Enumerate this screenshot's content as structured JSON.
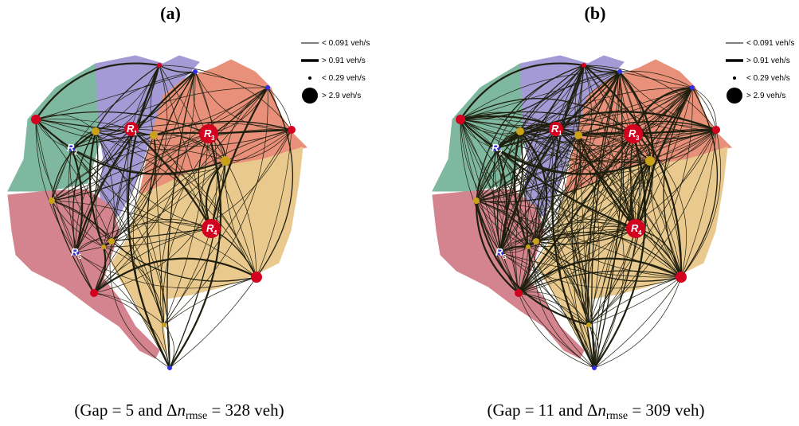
{
  "panels": [
    {
      "id": "a",
      "label": "(a)",
      "caption": {
        "prefix": "(Gap = 5 and Δ",
        "var": "n",
        "sub": "rmse",
        "suffix": " = 328 veh)"
      },
      "legend": [
        {
          "kind": "line-thin",
          "text": "< 0.091 veh/s"
        },
        {
          "kind": "line-thick",
          "text": "> 0.91 veh/s"
        },
        {
          "kind": "dot-small",
          "text": "< 0.29 veh/s"
        },
        {
          "kind": "dot-large",
          "text": "> 2.9 veh/s"
        }
      ],
      "regions": [
        {
          "tag": "R",
          "sub": "1"
        },
        {
          "tag": "R",
          "sub": "2"
        },
        {
          "tag": "R",
          "sub": "3"
        },
        {
          "tag": "R",
          "sub": "4"
        },
        {
          "tag": "R",
          "sub": "5"
        }
      ]
    },
    {
      "id": "b",
      "label": "(b)",
      "caption": {
        "prefix": "(Gap = 11 and Δ",
        "var": "n",
        "sub": "rmse",
        "suffix": " = 309 veh)"
      },
      "legend": [
        {
          "kind": "line-thin",
          "text": "< 0.091 veh/s"
        },
        {
          "kind": "line-thick",
          "text": "> 0.91 veh/s"
        },
        {
          "kind": "dot-small",
          "text": "< 0.29 veh/s"
        },
        {
          "kind": "dot-large",
          "text": "> 2.9 veh/s"
        }
      ],
      "regions": [
        {
          "tag": "R",
          "sub": "1"
        },
        {
          "tag": "R",
          "sub": "2"
        },
        {
          "tag": "R",
          "sub": "3"
        },
        {
          "tag": "R",
          "sub": "4"
        },
        {
          "tag": "R",
          "sub": "5"
        }
      ]
    }
  ],
  "colors": {
    "green": "#7fb8a0",
    "purple": "#a39ad6",
    "salmon": "#e8907a",
    "tan": "#e9c98e",
    "pink": "#d4848e",
    "edge": "#1f1f0f",
    "node_red": "#d40020",
    "node_gold": "#c9a21a",
    "node_blue": "#3030e0"
  }
}
